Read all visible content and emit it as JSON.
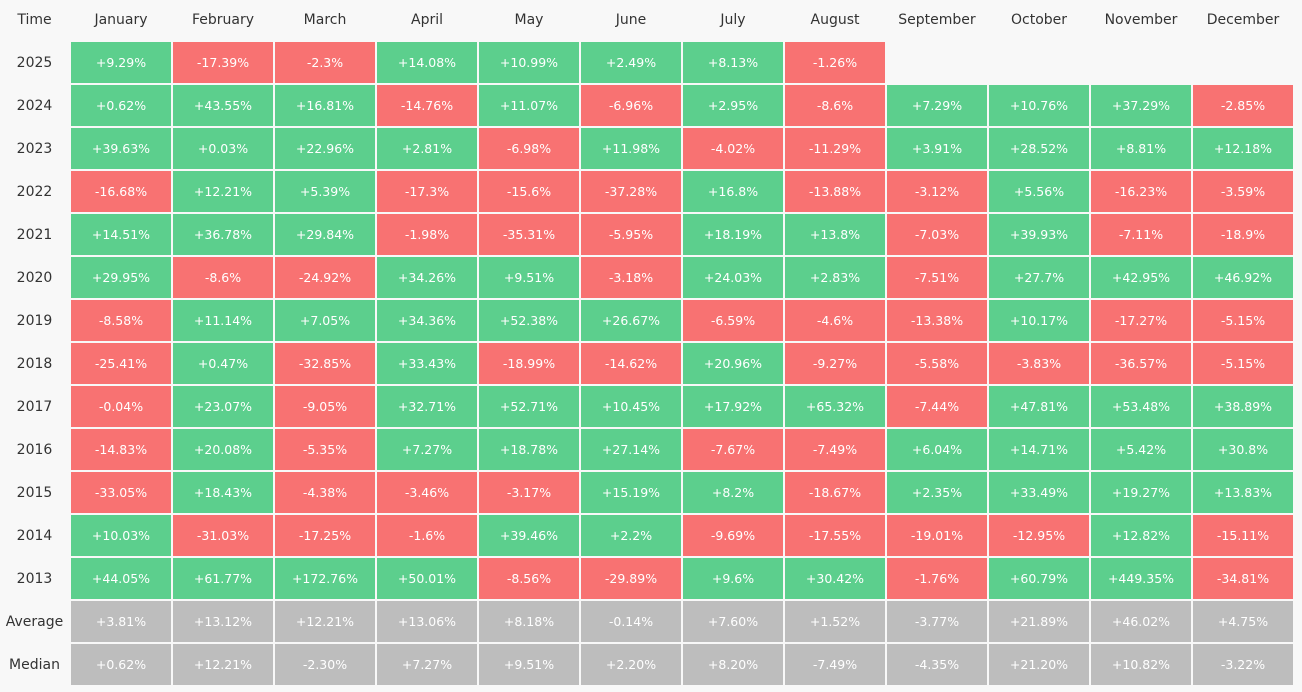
{
  "table": {
    "header": [
      "Time",
      "January",
      "February",
      "March",
      "April",
      "May",
      "June",
      "July",
      "August",
      "September",
      "October",
      "November",
      "December"
    ],
    "positive_color": "#5ccf8d",
    "negative_color": "#f87272",
    "summary_color": "#bdbdbd",
    "rows": [
      {
        "label": "2025",
        "cells": [
          "+9.29%",
          "-17.39%",
          "-2.3%",
          "+14.08%",
          "+10.99%",
          "+2.49%",
          "+8.13%",
          "-1.26%"
        ]
      },
      {
        "label": "2024",
        "cells": [
          "+0.62%",
          "+43.55%",
          "+16.81%",
          "-14.76%",
          "+11.07%",
          "-6.96%",
          "+2.95%",
          "-8.6%",
          "+7.29%",
          "+10.76%",
          "+37.29%",
          "-2.85%"
        ]
      },
      {
        "label": "2023",
        "cells": [
          "+39.63%",
          "+0.03%",
          "+22.96%",
          "+2.81%",
          "-6.98%",
          "+11.98%",
          "-4.02%",
          "-11.29%",
          "+3.91%",
          "+28.52%",
          "+8.81%",
          "+12.18%"
        ]
      },
      {
        "label": "2022",
        "cells": [
          "-16.68%",
          "+12.21%",
          "+5.39%",
          "-17.3%",
          "-15.6%",
          "-37.28%",
          "+16.8%",
          "-13.88%",
          "-3.12%",
          "+5.56%",
          "-16.23%",
          "-3.59%"
        ]
      },
      {
        "label": "2021",
        "cells": [
          "+14.51%",
          "+36.78%",
          "+29.84%",
          "-1.98%",
          "-35.31%",
          "-5.95%",
          "+18.19%",
          "+13.8%",
          "-7.03%",
          "+39.93%",
          "-7.11%",
          "-18.9%"
        ]
      },
      {
        "label": "2020",
        "cells": [
          "+29.95%",
          "-8.6%",
          "-24.92%",
          "+34.26%",
          "+9.51%",
          "-3.18%",
          "+24.03%",
          "+2.83%",
          "-7.51%",
          "+27.7%",
          "+42.95%",
          "+46.92%"
        ]
      },
      {
        "label": "2019",
        "cells": [
          "-8.58%",
          "+11.14%",
          "+7.05%",
          "+34.36%",
          "+52.38%",
          "+26.67%",
          "-6.59%",
          "-4.6%",
          "-13.38%",
          "+10.17%",
          "-17.27%",
          "-5.15%"
        ]
      },
      {
        "label": "2018",
        "cells": [
          "-25.41%",
          "+0.47%",
          "-32.85%",
          "+33.43%",
          "-18.99%",
          "-14.62%",
          "+20.96%",
          "-9.27%",
          "-5.58%",
          "-3.83%",
          "-36.57%",
          "-5.15%"
        ]
      },
      {
        "label": "2017",
        "cells": [
          "-0.04%",
          "+23.07%",
          "-9.05%",
          "+32.71%",
          "+52.71%",
          "+10.45%",
          "+17.92%",
          "+65.32%",
          "-7.44%",
          "+47.81%",
          "+53.48%",
          "+38.89%"
        ]
      },
      {
        "label": "2016",
        "cells": [
          "-14.83%",
          "+20.08%",
          "-5.35%",
          "+7.27%",
          "+18.78%",
          "+27.14%",
          "-7.67%",
          "-7.49%",
          "+6.04%",
          "+14.71%",
          "+5.42%",
          "+30.8%"
        ]
      },
      {
        "label": "2015",
        "cells": [
          "-33.05%",
          "+18.43%",
          "-4.38%",
          "-3.46%",
          "-3.17%",
          "+15.19%",
          "+8.2%",
          "-18.67%",
          "+2.35%",
          "+33.49%",
          "+19.27%",
          "+13.83%"
        ]
      },
      {
        "label": "2014",
        "cells": [
          "+10.03%",
          "-31.03%",
          "-17.25%",
          "-1.6%",
          "+39.46%",
          "+2.2%",
          "-9.69%",
          "-17.55%",
          "-19.01%",
          "-12.95%",
          "+12.82%",
          "-15.11%"
        ]
      },
      {
        "label": "2013",
        "cells": [
          "+44.05%",
          "+61.77%",
          "+172.76%",
          "+50.01%",
          "-8.56%",
          "-29.89%",
          "+9.6%",
          "+30.42%",
          "-1.76%",
          "+60.79%",
          "+449.35%",
          "-34.81%"
        ]
      }
    ],
    "summary_rows": [
      {
        "label": "Average",
        "cells": [
          "+3.81%",
          "+13.12%",
          "+12.21%",
          "+13.06%",
          "+8.18%",
          "-0.14%",
          "+7.60%",
          "+1.52%",
          "-3.77%",
          "+21.89%",
          "+46.02%",
          "+4.75%"
        ]
      },
      {
        "label": "Median",
        "cells": [
          "+0.62%",
          "+12.21%",
          "-2.30%",
          "+7.27%",
          "+9.51%",
          "+2.20%",
          "+8.20%",
          "-7.49%",
          "-4.35%",
          "+21.20%",
          "+10.82%",
          "-3.22%"
        ]
      }
    ]
  }
}
